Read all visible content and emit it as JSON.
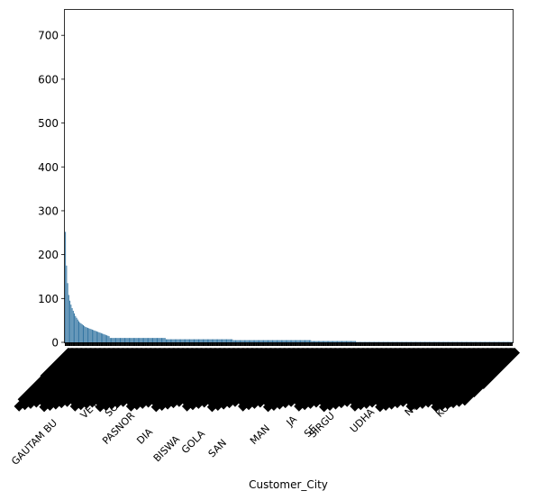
{
  "chart_data": {
    "type": "bar",
    "title": "",
    "xlabel": "Customer_City",
    "ylabel": "",
    "ylim": [
      0,
      760
    ],
    "yticks": [
      0,
      100,
      200,
      300,
      400,
      500,
      600,
      700
    ],
    "grid": false,
    "bar_color": "#3274a1",
    "category_count": 400,
    "visible_tick_labels": [
      "GAUTAM BU",
      "VE",
      "MU",
      "SO",
      "PASNOR",
      "DIA",
      "BISWA",
      "GOLA",
      "SAN",
      "MAN",
      "JA",
      "SE",
      "SIRGU",
      "UDHA",
      "NOI",
      "KODINAR"
    ],
    "values_head": [
      252,
      175,
      135,
      108,
      95,
      86,
      78,
      72,
      66,
      60,
      56,
      52,
      48,
      45,
      43,
      41,
      39,
      37,
      35,
      34,
      33,
      32,
      31,
      30,
      29,
      28,
      27,
      26,
      25,
      24,
      23,
      22,
      21,
      20,
      19,
      18,
      17,
      16,
      15,
      14
    ],
    "values_tail_profile": [
      {
        "until_index": 90,
        "value": 10
      },
      {
        "until_index": 150,
        "value": 7
      },
      {
        "until_index": 220,
        "value": 5
      },
      {
        "until_index": 260,
        "value": 3
      },
      {
        "until_index": 400,
        "value": 1
      }
    ]
  }
}
